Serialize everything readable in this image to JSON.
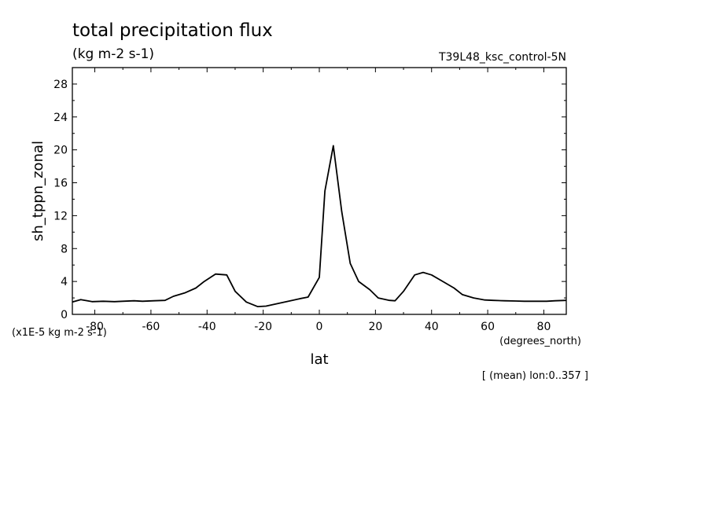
{
  "chart_data": {
    "type": "line",
    "title": "total precipitation flux",
    "subtitle": "(kg m-2 s-1)",
    "run_label": "T39L48_ksc_control-5N",
    "ylabel": "sh_tppn_zonal",
    "y_units": "(x1E-5 kg m-2 s-1)",
    "xlabel": "lat",
    "x_units": "(degrees_north)",
    "footnote": "[ (mean) lon:0..357 ]",
    "xlim": [
      -88,
      88
    ],
    "ylim": [
      0,
      30
    ],
    "x_ticks": [
      -80,
      -60,
      -40,
      -20,
      0,
      20,
      40,
      60,
      80
    ],
    "x_tick_labels": [
      "-80",
      "-60",
      "-40",
      "-20",
      "0",
      "20",
      "40",
      "60",
      "80"
    ],
    "y_ticks": [
      0,
      4,
      8,
      12,
      16,
      20,
      24,
      28
    ],
    "y_tick_labels": [
      "0",
      "4",
      "8",
      "12",
      "16",
      "20",
      "24",
      "28"
    ],
    "grid": false,
    "series": [
      {
        "x": [
          -88,
          -85,
          -81,
          -77,
          -73,
          -70,
          -66,
          -63,
          -59,
          -55,
          -52,
          -48,
          -44,
          -41,
          -37,
          -33,
          -30,
          -26,
          -22,
          -19,
          -15,
          -11,
          -7,
          -4,
          0,
          2,
          5,
          8,
          11,
          14,
          18,
          21,
          25,
          27,
          30,
          34,
          37,
          40,
          44,
          48,
          51,
          55,
          59,
          62,
          66,
          70,
          73,
          77,
          81,
          84,
          88
        ],
        "y": [
          1.5,
          1.8,
          1.55,
          1.6,
          1.55,
          1.6,
          1.65,
          1.6,
          1.65,
          1.7,
          2.2,
          2.6,
          3.2,
          4.0,
          4.9,
          4.8,
          2.8,
          1.5,
          0.95,
          1.0,
          1.3,
          1.6,
          1.9,
          2.1,
          4.5,
          15.0,
          20.5,
          12.5,
          6.2,
          4.0,
          3.0,
          2.0,
          1.7,
          1.65,
          2.8,
          4.8,
          5.1,
          4.8,
          4.0,
          3.2,
          2.4,
          2.0,
          1.75,
          1.7,
          1.65,
          1.62,
          1.6,
          1.6,
          1.6,
          1.65,
          1.7
        ]
      }
    ]
  }
}
